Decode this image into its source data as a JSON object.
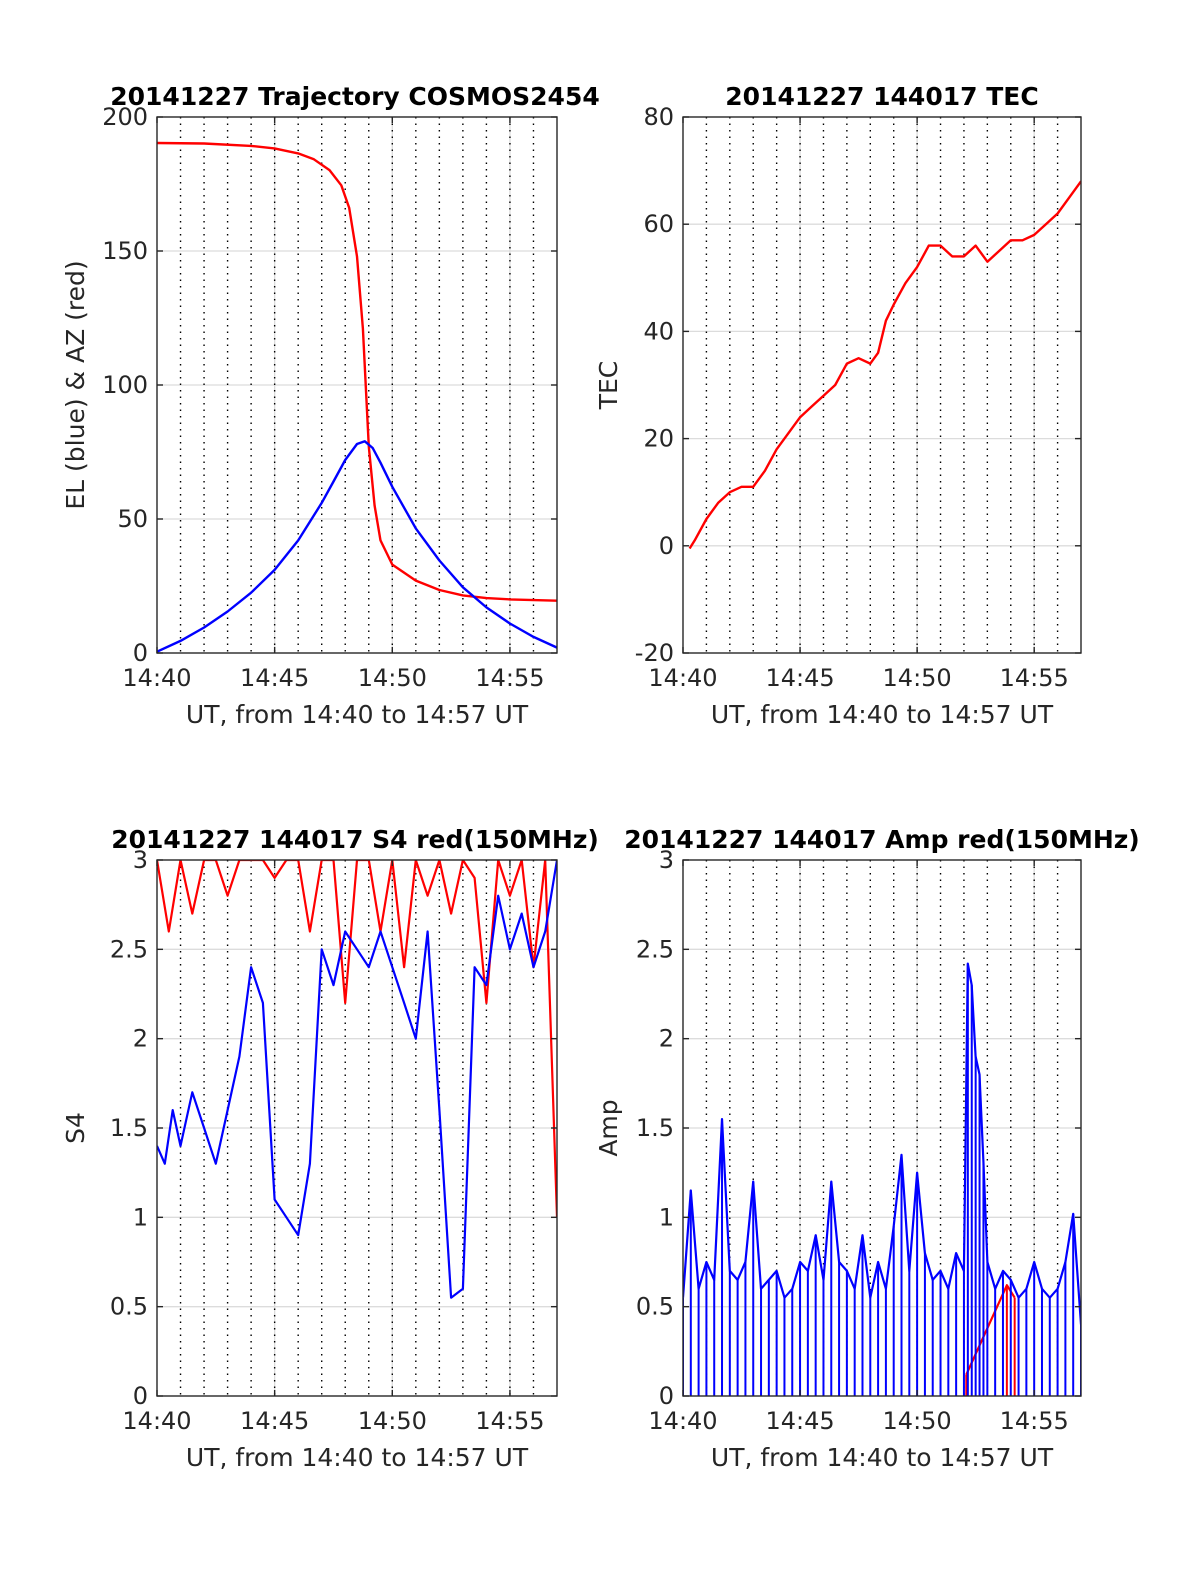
{
  "figure": {
    "background": "#ffffff",
    "colors": {
      "red": "#ff0000",
      "blue": "#0000ff",
      "grid": "#dcdcdc",
      "axes": "#262626"
    }
  },
  "chart_data": [
    {
      "id": "trajectory",
      "type": "line",
      "title": "20141227 Trajectory COSMOS2454",
      "xlabel": "UT, from 14:40 to 14:57 UT",
      "ylabel": "EL (blue) & AZ (red)",
      "xlim": [
        "14:40",
        "14:57"
      ],
      "ylim": [
        0,
        200
      ],
      "xticks": [
        "14:40",
        "14:45",
        "14:50",
        "14:55"
      ],
      "yticks": [
        0,
        50,
        100,
        150,
        200
      ],
      "minor_time_ticks_dotted": true,
      "grid": true,
      "series": [
        {
          "color": "#ff0000",
          "x": [
            "14:40:00",
            "14:42:00",
            "14:44:00",
            "14:45:00",
            "14:46:00",
            "14:46:40",
            "14:47:20",
            "14:47:50",
            "14:48:10",
            "14:48:30",
            "14:48:45",
            "14:49:00",
            "14:49:15",
            "14:49:30",
            "14:50:00",
            "14:51:00",
            "14:52:00",
            "14:53:00",
            "14:54:00",
            "14:55:00",
            "14:57:00"
          ],
          "y": [
            190.3,
            190.1,
            189.2,
            188.3,
            186.4,
            184.2,
            180.2,
            174.5,
            166.1,
            148.0,
            121.0,
            77.0,
            55.0,
            42.0,
            33.0,
            27.0,
            23.5,
            21.5,
            20.5,
            20.0,
            19.5
          ]
        },
        {
          "color": "#0000ff",
          "x": [
            "14:40:00",
            "14:41:00",
            "14:42:00",
            "14:43:00",
            "14:44:00",
            "14:45:00",
            "14:46:00",
            "14:47:00",
            "14:47:30",
            "14:48:00",
            "14:48:30",
            "14:48:50",
            "14:49:10",
            "14:49:30",
            "14:50:00",
            "14:51:00",
            "14:52:00",
            "14:53:00",
            "14:54:00",
            "14:55:00",
            "14:56:00",
            "14:57:00"
          ],
          "y": [
            0.5,
            4.5,
            9.5,
            15.5,
            22.5,
            31.0,
            42.0,
            56.0,
            64.0,
            72.0,
            78.0,
            79.0,
            76.5,
            71.0,
            62.0,
            46.5,
            34.5,
            24.5,
            17.0,
            11.0,
            6.0,
            2.0
          ]
        }
      ]
    },
    {
      "id": "tec",
      "type": "line",
      "title": "20141227 144017 TEC",
      "xlabel": "UT, from 14:40 to 14:57 UT",
      "ylabel": "TEC",
      "xlim": [
        "14:40",
        "14:57"
      ],
      "ylim": [
        -20,
        80
      ],
      "xticks": [
        "14:40",
        "14:45",
        "14:50",
        "14:55"
      ],
      "yticks": [
        -20,
        0,
        20,
        40,
        60,
        80
      ],
      "minor_time_ticks_dotted": true,
      "grid": true,
      "series": [
        {
          "color": "#ff0000",
          "x": [
            "14:40:17",
            "14:40:30",
            "14:41:00",
            "14:41:30",
            "14:42:00",
            "14:42:30",
            "14:43:00",
            "14:43:30",
            "14:44:00",
            "14:44:30",
            "14:45:00",
            "14:45:30",
            "14:46:00",
            "14:46:30",
            "14:47:00",
            "14:47:30",
            "14:48:00",
            "14:48:20",
            "14:48:40",
            "14:49:00",
            "14:49:30",
            "14:50:00",
            "14:50:30",
            "14:51:00",
            "14:51:30",
            "14:52:00",
            "14:52:30",
            "14:53:00",
            "14:53:30",
            "14:54:00",
            "14:54:30",
            "14:55:00",
            "14:55:30",
            "14:56:00",
            "14:56:30",
            "14:57:00"
          ],
          "y": [
            -0.5,
            1,
            5,
            8,
            10,
            11,
            11,
            14,
            18,
            21,
            24,
            26,
            28,
            30,
            34,
            35,
            34,
            36,
            42,
            45,
            49,
            52,
            56,
            56,
            54,
            54,
            56,
            53,
            55,
            57,
            57,
            58,
            60,
            62,
            65,
            68
          ]
        }
      ]
    },
    {
      "id": "s4",
      "type": "line",
      "title": "20141227 144017 S4 red(150MHz)",
      "xlabel": "UT, from 14:40 to 14:57 UT",
      "ylabel": "S4",
      "xlim": [
        "14:40",
        "14:57"
      ],
      "ylim": [
        0,
        3
      ],
      "xticks": [
        "14:40",
        "14:45",
        "14:50",
        "14:55"
      ],
      "yticks": [
        0,
        0.5,
        1,
        1.5,
        2,
        2.5,
        3
      ],
      "minor_time_ticks_dotted": true,
      "grid": true,
      "series": [
        {
          "color": "#ff0000",
          "x": [
            "14:40:00",
            "14:40:30",
            "14:41:00",
            "14:41:30",
            "14:42:00",
            "14:42:30",
            "14:43:00",
            "14:43:30",
            "14:44:00",
            "14:44:30",
            "14:45:00",
            "14:45:30",
            "14:46:00",
            "14:46:30",
            "14:47:00",
            "14:47:30",
            "14:48:00",
            "14:48:30",
            "14:49:00",
            "14:49:30",
            "14:50:00",
            "14:50:30",
            "14:51:00",
            "14:51:30",
            "14:52:00",
            "14:52:30",
            "14:53:00",
            "14:53:30",
            "14:54:00",
            "14:54:30",
            "14:55:00",
            "14:55:30",
            "14:56:00",
            "14:56:30",
            "14:57:00"
          ],
          "y": [
            3,
            2.6,
            3,
            2.7,
            3,
            3,
            2.8,
            3,
            3,
            3,
            2.9,
            3,
            3,
            2.6,
            3,
            3,
            2.2,
            3,
            3,
            2.6,
            3,
            2.4,
            3,
            2.8,
            3,
            2.7,
            3,
            2.9,
            2.2,
            3,
            2.8,
            3,
            2.4,
            3,
            1
          ]
        },
        {
          "color": "#0000ff",
          "x": [
            "14:40:00",
            "14:40:20",
            "14:40:40",
            "14:41:00",
            "14:41:30",
            "14:42:00",
            "14:42:30",
            "14:43:00",
            "14:43:30",
            "14:44:00",
            "14:44:30",
            "14:45:00",
            "14:45:30",
            "14:46:00",
            "14:46:30",
            "14:47:00",
            "14:47:30",
            "14:48:00",
            "14:48:30",
            "14:49:00",
            "14:49:30",
            "14:50:00",
            "14:50:30",
            "14:51:00",
            "14:51:30",
            "14:52:00",
            "14:52:30",
            "14:53:00",
            "14:53:30",
            "14:54:00",
            "14:54:30",
            "14:55:00",
            "14:55:30",
            "14:56:00",
            "14:56:30",
            "14:57:00"
          ],
          "y": [
            1.4,
            1.3,
            1.6,
            1.4,
            1.7,
            1.5,
            1.3,
            1.6,
            1.9,
            2.4,
            2.2,
            1.1,
            1.0,
            0.9,
            1.3,
            2.5,
            2.3,
            2.6,
            2.5,
            2.4,
            2.6,
            2.4,
            2.2,
            2.0,
            2.6,
            1.6,
            0.55,
            0.6,
            2.4,
            2.3,
            2.8,
            2.5,
            2.7,
            2.4,
            2.6,
            3
          ]
        }
      ]
    },
    {
      "id": "amp",
      "type": "line",
      "title": "20141227 144017 Amp red(150MHz)",
      "xlabel": "UT, from 14:40 to 14:57 UT",
      "ylabel": "Amp",
      "xlim": [
        "14:40",
        "14:57"
      ],
      "ylim": [
        0,
        3
      ],
      "xticks": [
        "14:40",
        "14:45",
        "14:50",
        "14:55"
      ],
      "yticks": [
        0,
        0.5,
        1,
        1.5,
        2,
        2.5,
        3
      ],
      "minor_time_ticks_dotted": true,
      "grid": true,
      "series": [
        {
          "color": "#ff0000",
          "x": [
            "14:52:06",
            "14:53:50",
            "14:54:10"
          ],
          "y": [
            0.12,
            0.62,
            0.55
          ]
        },
        {
          "color": "#0000ff",
          "x": [
            "14:40:00",
            "14:40:20",
            "14:40:40",
            "14:41:00",
            "14:41:20",
            "14:41:40",
            "14:42:00",
            "14:42:20",
            "14:42:40",
            "14:43:00",
            "14:43:20",
            "14:43:40",
            "14:44:00",
            "14:44:20",
            "14:44:40",
            "14:45:00",
            "14:45:20",
            "14:45:40",
            "14:46:00",
            "14:46:20",
            "14:46:40",
            "14:47:00",
            "14:47:20",
            "14:47:40",
            "14:48:00",
            "14:48:20",
            "14:48:40",
            "14:49:00",
            "14:49:20",
            "14:49:40",
            "14:50:00",
            "14:50:20",
            "14:50:40",
            "14:51:00",
            "14:51:20",
            "14:51:40",
            "14:52:00",
            "14:52:10",
            "14:52:20",
            "14:52:30",
            "14:52:40",
            "14:52:50",
            "14:53:00",
            "14:53:20",
            "14:53:40",
            "14:54:00",
            "14:54:20",
            "14:54:40",
            "14:55:00",
            "14:55:20",
            "14:55:40",
            "14:56:00",
            "14:56:20",
            "14:56:40",
            "14:57:00"
          ],
          "y": [
            0.55,
            1.15,
            0.6,
            0.75,
            0.65,
            1.55,
            0.7,
            0.65,
            0.75,
            1.2,
            0.6,
            0.65,
            0.7,
            0.55,
            0.6,
            0.75,
            0.7,
            0.9,
            0.65,
            1.2,
            0.75,
            0.7,
            0.6,
            0.9,
            0.55,
            0.75,
            0.6,
            0.95,
            1.35,
            0.7,
            1.25,
            0.8,
            0.65,
            0.7,
            0.6,
            0.8,
            0.7,
            2.42,
            2.3,
            1.9,
            1.8,
            1.3,
            0.75,
            0.6,
            0.7,
            0.65,
            0.55,
            0.6,
            0.75,
            0.6,
            0.55,
            0.6,
            0.75,
            1.02,
            0.4
          ]
        }
      ]
    }
  ]
}
